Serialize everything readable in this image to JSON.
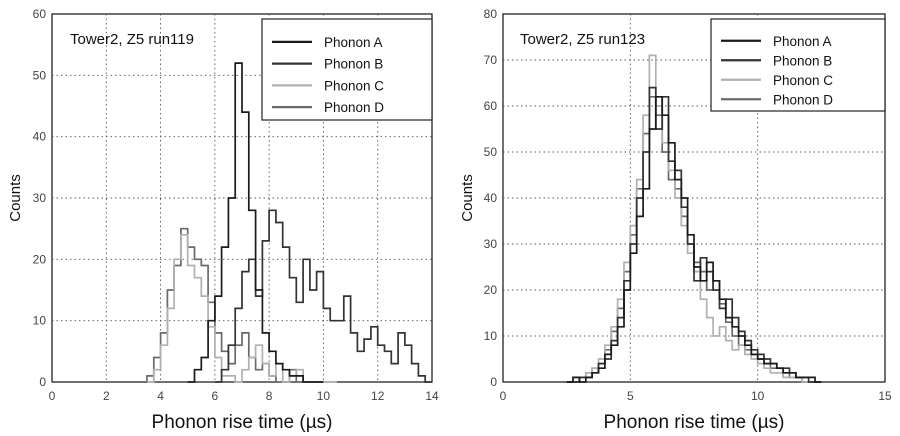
{
  "chart_data": [
    {
      "type": "histogram",
      "annotation": "Tower2, Z5 run119",
      "xlabel": "Phonon rise time (µs)",
      "ylabel": "Counts",
      "xlim": [
        0,
        14
      ],
      "ylim": [
        0,
        60
      ],
      "xticks": [
        0,
        2,
        4,
        6,
        8,
        10,
        12,
        14
      ],
      "yticks": [
        0,
        10,
        20,
        30,
        40,
        50,
        60
      ],
      "xtick_labels": [
        "0",
        "2",
        "4",
        "6",
        "8",
        "10",
        "12",
        "14"
      ],
      "ytick_labels": [
        "0",
        "10",
        "20",
        "30",
        "40",
        "50",
        "60"
      ],
      "grid": true,
      "legend_position": "top-right",
      "bin_width": 0.25,
      "series": [
        {
          "name": "Phonon A",
          "color": "#1a1a1a",
          "x_start": 5.0,
          "values": [
            0,
            2,
            4,
            10,
            14,
            22,
            30,
            52,
            44,
            28,
            15,
            8,
            5,
            3,
            2,
            1,
            1,
            0,
            0,
            0
          ]
        },
        {
          "name": "Phonon B",
          "color": "#333333",
          "x_start": 6.0,
          "values": [
            0,
            2,
            6,
            12,
            18,
            20,
            14,
            23,
            28,
            26,
            22,
            17,
            13,
            20,
            15,
            18,
            12,
            10,
            10,
            14,
            8,
            5,
            7,
            9,
            6,
            5,
            3,
            8,
            6,
            3,
            1,
            0
          ]
        },
        {
          "name": "Phonon C",
          "color": "#b0b0b0",
          "x_start": 3.5,
          "values": [
            0,
            2,
            6,
            12,
            20,
            24,
            19,
            17,
            14,
            9,
            4,
            1,
            1,
            0,
            2,
            4,
            6,
            3,
            1,
            3,
            0,
            1,
            2,
            0,
            0,
            0,
            0,
            0
          ]
        },
        {
          "name": "Phonon D",
          "color": "#6a6a6a",
          "x_start": 3.5,
          "values": [
            1,
            4,
            8,
            15,
            19,
            25,
            22,
            20,
            19,
            13,
            8,
            5,
            3,
            6,
            8,
            4,
            2,
            3,
            1,
            0,
            0,
            2,
            0
          ]
        }
      ]
    },
    {
      "type": "histogram",
      "annotation": "Tower2, Z5 run123",
      "xlabel": "Phonon rise time (µs)",
      "ylabel": "Counts",
      "xlim": [
        0,
        15
      ],
      "ylim": [
        0,
        80
      ],
      "xticks": [
        0,
        5,
        10,
        15
      ],
      "yticks": [
        0,
        10,
        20,
        30,
        40,
        50,
        60,
        70,
        80
      ],
      "xtick_labels": [
        "0",
        "5",
        "10",
        "15"
      ],
      "ytick_labels": [
        "0",
        "10",
        "20",
        "30",
        "40",
        "50",
        "60",
        "70",
        "80"
      ],
      "grid": true,
      "legend_position": "top-right",
      "bin_width": 0.25,
      "series": [
        {
          "name": "Phonon A",
          "color": "#1a1a1a",
          "x_start": 2.5,
          "values": [
            0,
            1,
            0,
            1,
            2,
            3,
            6,
            8,
            12,
            20,
            28,
            36,
            42,
            55,
            62,
            58,
            52,
            44,
            40,
            32,
            25,
            22,
            26,
            22,
            18,
            14,
            12,
            10,
            8,
            6,
            5,
            4,
            4,
            3,
            2,
            2,
            1,
            1,
            1,
            0
          ]
        },
        {
          "name": "Phonon B",
          "color": "#333333",
          "x_start": 2.5,
          "values": [
            0,
            0,
            1,
            1,
            2,
            4,
            5,
            9,
            14,
            22,
            30,
            40,
            50,
            64,
            55,
            62,
            48,
            46,
            38,
            30,
            22,
            27,
            24,
            20,
            16,
            18,
            14,
            11,
            9,
            7,
            6,
            5,
            4,
            3,
            3,
            2,
            1,
            1,
            0,
            0
          ]
        },
        {
          "name": "Phonon C",
          "color": "#b0b0b0",
          "x_start": 2.5,
          "values": [
            0,
            1,
            1,
            2,
            3,
            5,
            8,
            12,
            18,
            26,
            34,
            44,
            58,
            71,
            60,
            52,
            46,
            40,
            34,
            28,
            24,
            18,
            14,
            10,
            12,
            9,
            7,
            8,
            6,
            5,
            4,
            3,
            2,
            2,
            1,
            1,
            1,
            0,
            0,
            0
          ]
        },
        {
          "name": "Phonon D",
          "color": "#6a6a6a",
          "x_start": 2.5,
          "values": [
            0,
            0,
            1,
            2,
            3,
            4,
            7,
            11,
            16,
            24,
            32,
            42,
            54,
            62,
            58,
            50,
            44,
            42,
            36,
            30,
            26,
            24,
            20,
            22,
            17,
            13,
            10,
            8,
            7,
            6,
            5,
            4,
            3,
            3,
            2,
            1,
            1,
            0,
            0,
            0
          ]
        }
      ]
    }
  ]
}
